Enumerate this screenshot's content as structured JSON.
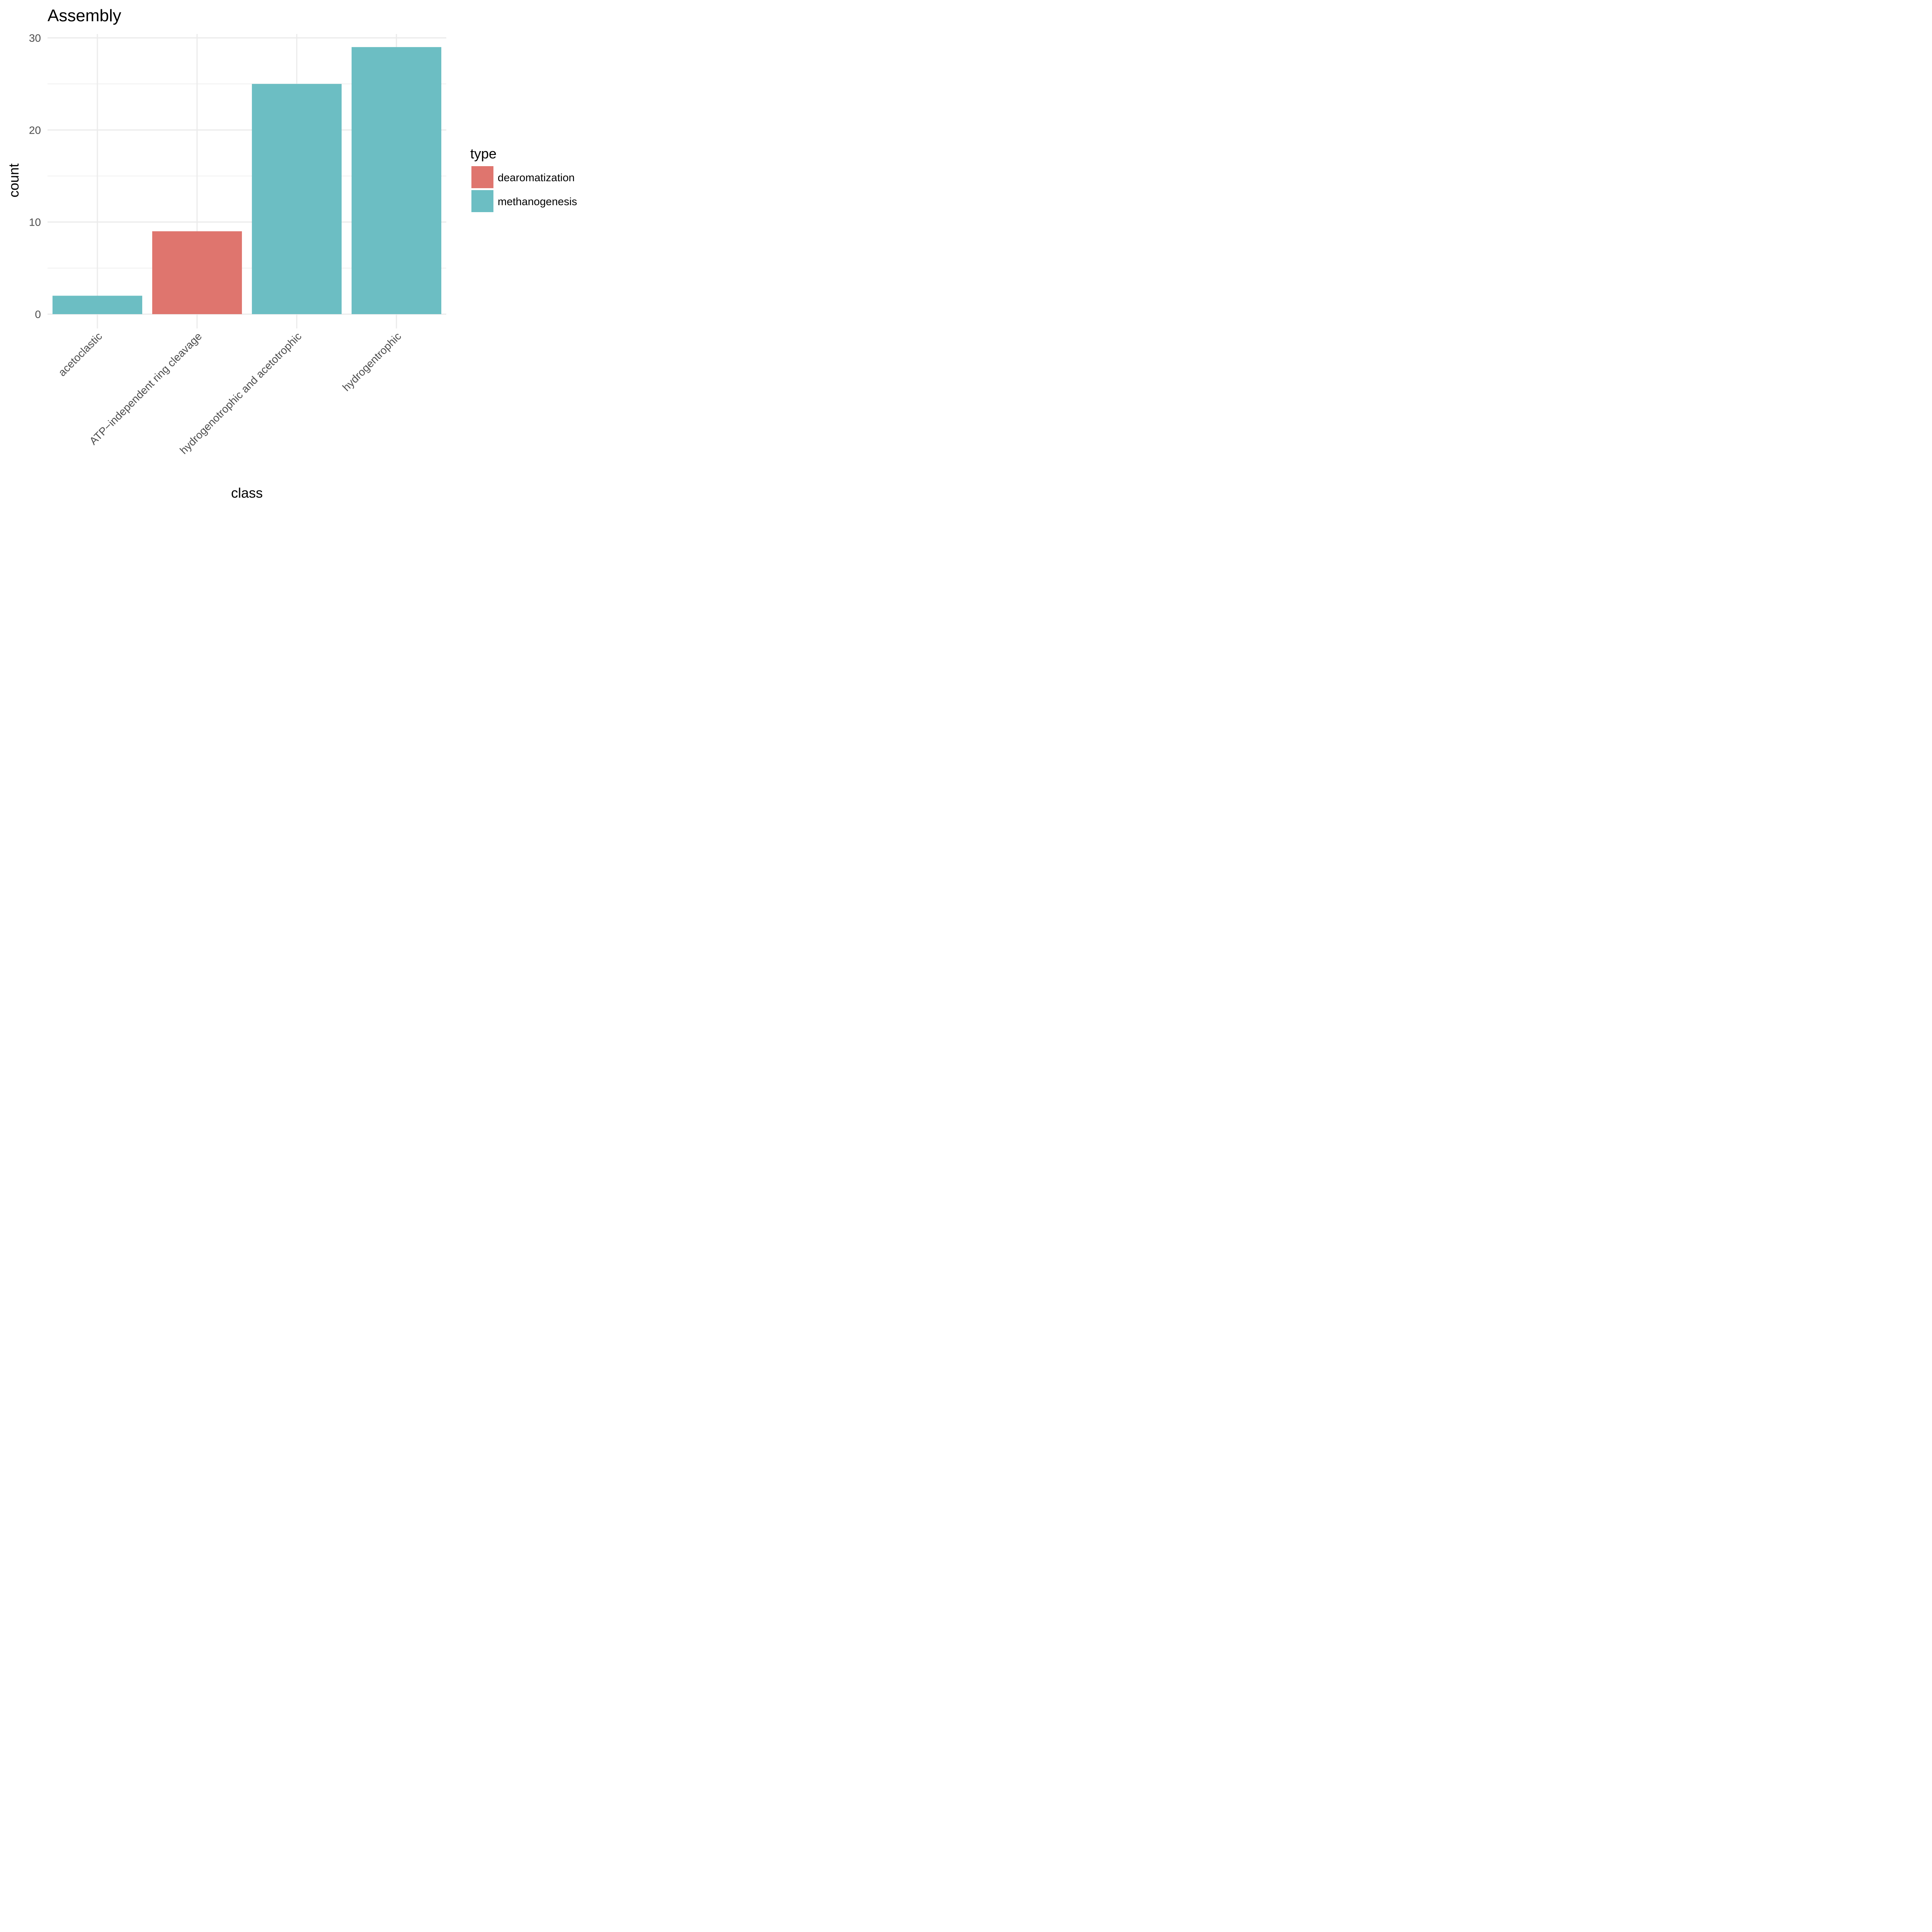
{
  "chart_data": {
    "type": "bar",
    "title": "Assembly",
    "xlabel": "class",
    "ylabel": "count",
    "categories": [
      "acetoclastic",
      "ATP−independent ring cleavage",
      "hydrogenotrophic and acetotrophic",
      "hydrogentrophic"
    ],
    "values": [
      2,
      9,
      25,
      29
    ],
    "types": [
      "methanogenesis",
      "dearomatization",
      "methanogenesis",
      "methanogenesis"
    ],
    "ylim": [
      0,
      30
    ],
    "yticks": [
      0,
      10,
      20,
      30
    ],
    "grid": true,
    "legend": {
      "title": "type",
      "position": "right",
      "entries": [
        {
          "name": "dearomatization",
          "color": "#DF756E"
        },
        {
          "name": "methanogenesis",
          "color": "#6CBEC3"
        }
      ]
    }
  }
}
